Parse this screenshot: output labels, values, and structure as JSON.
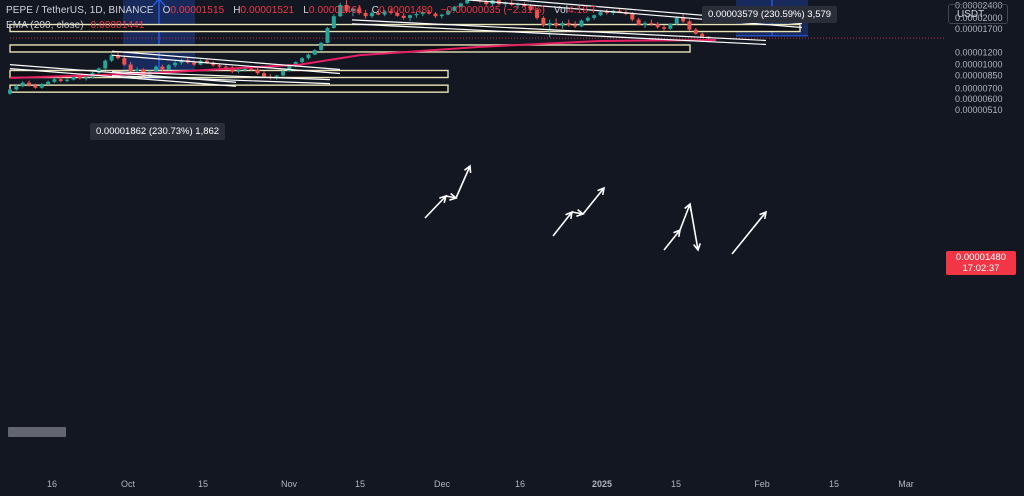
{
  "legend": {
    "symbol": "PEPE / TetherUS, 1D, BINANCE",
    "open_label": "O",
    "open": "0.00001515",
    "high_label": "H",
    "high": "0.00001521",
    "low_label": "L",
    "low": "0.00001461",
    "close_label": "C",
    "close": "0.00001480",
    "change": "−0.00000035 (−2.31%)",
    "vol_label": "Vol",
    "vol": "4.18 T",
    "ema_name": "EMA (200, close)",
    "ema_value": "0.00001441"
  },
  "currency_button": "USDT",
  "current_price": {
    "value": "0.00001480",
    "countdown": "17:02:37",
    "color": "#f23645"
  },
  "measure_tooltips": [
    {
      "text": "0.00001862 (230.73%) 1,862"
    },
    {
      "text": "0.00003579 (230.59%) 3,579"
    }
  ],
  "colors": {
    "background": "#131722",
    "up": "#26a69a",
    "down": "#ef5350",
    "ema": "#e91e63",
    "zone_fill": "#1e3a8a",
    "measure_line": "#2962ff",
    "level_border": "#e8e2b8"
  },
  "chart_data": {
    "type": "candlestick",
    "y_scale": "log",
    "ylim": [
      4.6e-06,
      6.2e-06
    ],
    "y_ticks": [
      "0.00005000",
      "0.00004000",
      "0.00003400",
      "0.00002800",
      "0.00002400",
      "0.00002000",
      "0.00001700",
      "0.00001200",
      "0.00001000",
      "0.00000850",
      "0.00000700",
      "0.00000600",
      "0.00000510"
    ],
    "x_ticks": [
      "16",
      "Oct",
      "15",
      "Nov",
      "15",
      "Dec",
      "16",
      "2025",
      "15",
      "Feb",
      "15",
      "Mar"
    ],
    "ema_label": "EMA (200, close)",
    "last_close": 1.48e-05,
    "candles": [
      [
        6.5e-06,
        7e-06,
        6.4e-06,
        6.9e-06
      ],
      [
        6.9e-06,
        7.4e-06,
        6.8e-06,
        7.25e-06
      ],
      [
        7.25e-06,
        7.8e-06,
        7.15e-06,
        7.65e-06
      ],
      [
        7.65e-06,
        7.9e-06,
        7.2e-06,
        7.35e-06
      ],
      [
        7.35e-06,
        7.55e-06,
        7e-06,
        7.1e-06
      ],
      [
        7.1e-06,
        7.6e-06,
        7e-06,
        7.5e-06
      ],
      [
        7.5e-06,
        7.9e-06,
        7.35e-06,
        7.75e-06
      ],
      [
        7.75e-06,
        8.2e-06,
        7.6e-06,
        8.05e-06
      ],
      [
        8.05e-06,
        8.3e-06,
        7.7e-06,
        7.85e-06
      ],
      [
        7.85e-06,
        8.15e-06,
        7.7e-06,
        8e-06
      ],
      [
        8e-06,
        8.5e-06,
        7.9e-06,
        8.35e-06
      ],
      [
        8.35e-06,
        8.7e-06,
        8e-06,
        8.15e-06
      ],
      [
        8.15e-06,
        8.4e-06,
        7.9e-06,
        8.25e-06
      ],
      [
        8.25e-06,
        9e-06,
        8.15e-06,
        8.85e-06
      ],
      [
        8.85e-06,
        9.6e-06,
        8.7e-06,
        9.45e-06
      ],
      [
        9.45e-06,
        1.08e-05,
        9.3e-06,
        1.06e-05
      ],
      [
        1.06e-05,
        1.18e-05,
        1.04e-05,
        1.15e-05
      ],
      [
        1.15e-05,
        1.2e-05,
        1.08e-05,
        1.1e-05
      ],
      [
        1.1e-05,
        1.13e-05,
        9.8e-06,
        1e-05
      ],
      [
        1e-05,
        1.04e-05,
        8.8e-06,
        9.1e-06
      ],
      [
        9.1e-06,
        9.6e-06,
        8.6e-06,
        9.3e-06
      ],
      [
        9.3e-06,
        9.5e-06,
        8.2e-06,
        8.4e-06
      ],
      [
        8.4e-06,
        9.2e-06,
        8.3e-06,
        9e-06
      ],
      [
        9e-06,
        9.9e-06,
        8.8e-06,
        9.7e-06
      ],
      [
        9.7e-06,
        1e-05,
        9.1e-06,
        9.3e-06
      ],
      [
        9.3e-06,
        1.01e-05,
        9.2e-06,
        9.9e-06
      ],
      [
        9.9e-06,
        1.05e-05,
        9.6e-06,
        1.03e-05
      ],
      [
        1.03e-05,
        1.09e-05,
        1e-05,
        1.07e-05
      ],
      [
        1.07e-05,
        1.11e-05,
        1.01e-05,
        1.03e-05
      ],
      [
        1.03e-05,
        1.06e-05,
        9.8e-06,
        1e-05
      ],
      [
        1e-05,
        1.08e-05,
        9.9e-06,
        1.06e-05
      ],
      [
        1.06e-05,
        1.09e-05,
        1.01e-05,
        1.03e-05
      ],
      [
        1.03e-05,
        1.05e-05,
        9.7e-06,
        9.9e-06
      ],
      [
        9.9e-06,
        1.02e-05,
        9.5e-06,
        9.7e-06
      ],
      [
        9.7e-06,
        1e-05,
        9.4e-06,
        9.6e-06
      ],
      [
        9.6e-06,
        9.8e-06,
        8.8e-06,
        9e-06
      ],
      [
        9e-06,
        9.4e-06,
        8.8e-06,
        9.2e-06
      ],
      [
        9.2e-06,
        9.6e-06,
        9e-06,
        9.4e-06
      ],
      [
        9.4e-06,
        9.7e-06,
        9.1e-06,
        9.3e-06
      ],
      [
        9.3e-06,
        9.5e-06,
        8.6e-06,
        8.8e-06
      ],
      [
        8.8e-06,
        9.1e-06,
        8.2e-06,
        8.4e-06
      ],
      [
        8.4e-06,
        8.7e-06,
        8e-06,
        8.2e-06
      ],
      [
        8.2e-06,
        8.6e-06,
        8e-06,
        8.5e-06
      ],
      [
        8.5e-06,
        9.2e-06,
        8.4e-06,
        9.1e-06
      ],
      [
        9.1e-06,
        9.9e-06,
        9e-06,
        9.8e-06
      ],
      [
        9.8e-06,
        1.05e-05,
        9.6e-06,
        1.04e-05
      ],
      [
        1.04e-05,
        1.12e-05,
        1.02e-05,
        1.1e-05
      ],
      [
        1.1e-05,
        1.18e-05,
        1.08e-05,
        1.16e-05
      ],
      [
        1.16e-05,
        1.26e-05,
        1.15e-05,
        1.24e-05
      ],
      [
        1.24e-05,
        1.4e-05,
        1.23e-05,
        1.38e-05
      ],
      [
        1.38e-05,
        1.75e-05,
        1.37e-05,
        1.72e-05
      ],
      [
        1.72e-05,
        2.1e-05,
        1.7e-05,
        2.05e-05
      ],
      [
        2.05e-05,
        2.5e-05,
        2.02e-05,
        2.42e-05
      ],
      [
        2.42e-05,
        2.6e-05,
        2.15e-05,
        2.2e-05
      ],
      [
        2.2e-05,
        2.35e-05,
        2.05e-05,
        2.3e-05
      ],
      [
        2.3e-05,
        2.42e-05,
        2.1e-05,
        2.15e-05
      ],
      [
        2.15e-05,
        2.25e-05,
        1.98e-05,
        2.05e-05
      ],
      [
        2.05e-05,
        2.2e-05,
        2e-05,
        2.15e-05
      ],
      [
        2.15e-05,
        2.28e-05,
        2.08e-05,
        2.1e-05
      ],
      [
        2.1e-05,
        2.25e-05,
        2.05e-05,
        2.2e-05
      ],
      [
        2.2e-05,
        2.3e-05,
        2.1e-05,
        2.15e-05
      ],
      [
        2.15e-05,
        2.22e-05,
        2.03e-05,
        2.06e-05
      ],
      [
        2.06e-05,
        2.15e-05,
        1.95e-05,
        2e-05
      ],
      [
        2e-05,
        2.1e-05,
        1.9e-05,
        2.08e-05
      ],
      [
        2.08e-05,
        2.18e-05,
        2e-05,
        2.12e-05
      ],
      [
        2.12e-05,
        2.2e-05,
        2.05e-05,
        2.18e-05
      ],
      [
        2.18e-05,
        2.25e-05,
        2.1e-05,
        2.13e-05
      ],
      [
        2.13e-05,
        2.18e-05,
        2e-05,
        2.05e-05
      ],
      [
        2.05e-05,
        2.12e-05,
        1.98e-05,
        2.1e-05
      ],
      [
        2.1e-05,
        2.25e-05,
        2.08e-05,
        2.22e-05
      ],
      [
        2.22e-05,
        2.38e-05,
        2.2e-05,
        2.36e-05
      ],
      [
        2.36e-05,
        2.5e-05,
        2.34e-05,
        2.48e-05
      ],
      [
        2.48e-05,
        2.75e-05,
        2.45e-05,
        2.7e-05
      ],
      [
        2.7e-05,
        2.85e-05,
        2.55e-05,
        2.6e-05
      ],
      [
        2.6e-05,
        2.8e-05,
        2.5e-05,
        2.55e-05
      ],
      [
        2.55e-05,
        2.7e-05,
        2.4e-05,
        2.45e-05
      ],
      [
        2.45e-05,
        2.65e-05,
        2.38e-05,
        2.6e-05
      ],
      [
        2.6e-05,
        2.65e-05,
        2.4e-05,
        2.45e-05
      ],
      [
        2.45e-05,
        2.55e-05,
        2.35e-05,
        2.5e-05
      ],
      [
        2.5e-05,
        2.6e-05,
        2.38e-05,
        2.42e-05
      ],
      [
        2.42e-05,
        2.5e-05,
        2.3e-05,
        2.45e-05
      ],
      [
        2.45e-05,
        2.52e-05,
        2.35e-05,
        2.38e-05
      ],
      [
        2.38e-05,
        2.45e-05,
        2.2e-05,
        2.25e-05
      ],
      [
        2.25e-05,
        2.32e-05,
        1.95e-05,
        2e-05
      ],
      [
        2e-05,
        2.05e-05,
        1.75e-05,
        1.8e-05
      ],
      [
        1.8e-05,
        1.95e-05,
        1.5e-05,
        1.85e-05
      ],
      [
        1.85e-05,
        1.98e-05,
        1.72e-05,
        1.78e-05
      ],
      [
        1.78e-05,
        1.9e-05,
        1.7e-05,
        1.85e-05
      ],
      [
        1.85e-05,
        1.95e-05,
        1.75e-05,
        1.8e-05
      ],
      [
        1.8e-05,
        1.9e-05,
        1.72e-05,
        1.76e-05
      ],
      [
        1.76e-05,
        1.95e-05,
        1.74e-05,
        1.92e-05
      ],
      [
        1.92e-05,
        2.05e-05,
        1.88e-05,
        2e-05
      ],
      [
        2e-05,
        2.1e-05,
        1.95e-05,
        2.08e-05
      ],
      [
        2.08e-05,
        2.2e-05,
        2.05e-05,
        2.18e-05
      ],
      [
        2.18e-05,
        2.28e-05,
        2.1e-05,
        2.15e-05
      ],
      [
        2.15e-05,
        2.25e-05,
        2.08e-05,
        2.22e-05
      ],
      [
        2.22e-05,
        2.3e-05,
        2.15e-05,
        2.18e-05
      ],
      [
        2.18e-05,
        2.24e-05,
        2.08e-05,
        2.12e-05
      ],
      [
        2.12e-05,
        2.18e-05,
        1.9e-05,
        1.95e-05
      ],
      [
        1.95e-05,
        2e-05,
        1.78e-05,
        1.8e-05
      ],
      [
        1.8e-05,
        1.9e-05,
        1.72e-05,
        1.85e-05
      ],
      [
        1.85e-05,
        1.95e-05,
        1.78e-05,
        1.82e-05
      ],
      [
        1.82e-05,
        1.88e-05,
        1.7e-05,
        1.74e-05
      ],
      [
        1.74e-05,
        1.8e-05,
        1.65e-05,
        1.7e-05
      ],
      [
        1.7e-05,
        1.85e-05,
        1.68e-05,
        1.83e-05
      ],
      [
        1.83e-05,
        2.05e-05,
        1.8e-05,
        2e-05
      ],
      [
        2e-05,
        2.1e-05,
        1.85e-05,
        1.9e-05
      ],
      [
        1.9e-05,
        1.95e-05,
        1.65e-05,
        1.68e-05
      ],
      [
        1.68e-05,
        1.72e-05,
        1.56e-05,
        1.58e-05
      ],
      [
        1.58e-05,
        1.62e-05,
        1.5e-05,
        1.515e-05
      ],
      [
        1.515e-05,
        1.521e-05,
        1.461e-05,
        1.48e-05
      ]
    ],
    "ema": [
      8.2e-06,
      8.8e-06,
      1e-05,
      1.15e-05,
      1.3e-05,
      1.42e-05,
      1.441e-05
    ]
  }
}
